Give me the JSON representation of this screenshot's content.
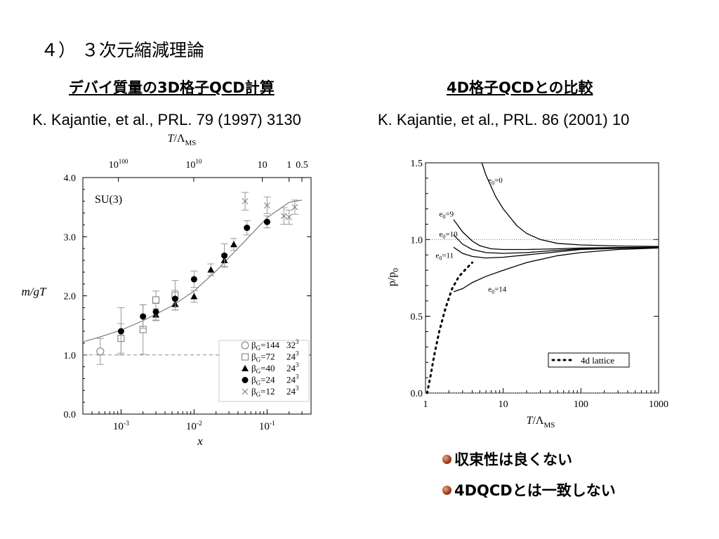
{
  "slide": {
    "title": "４） ３次元縮減理論",
    "left_heading": "デバイ質量の3D格子QCD計算",
    "right_heading": "4D格子QCDとの比較",
    "left_reference": "K. Kajantie, et al., PRL. 79 (1997) 3130",
    "right_reference": "K. Kajantie, et al., PRL.  86 (2001) 10",
    "bullets": [
      "収束性は良くない",
      "4DQCDとは一致しない"
    ],
    "bullet_color": "#a0341a"
  },
  "chart_data": [
    {
      "type": "scatter",
      "annotation": "SU(3)",
      "xlabel": "x",
      "ylabel": "m/gT",
      "x_scale": "log",
      "xlim": [
        0.0003,
        0.4
      ],
      "ylim": [
        0,
        4
      ],
      "xticks": [
        {
          "v": 0.001,
          "base": "10",
          "exp": "-3"
        },
        {
          "v": 0.01,
          "base": "10",
          "exp": "-2"
        },
        {
          "v": 0.1,
          "base": "10",
          "exp": "-1"
        }
      ],
      "yticks": [
        "0.0",
        "1.0",
        "2.0",
        "3.0",
        "4.0"
      ],
      "top_axis": {
        "label_italic": "T",
        "label_rest": "/Λ",
        "label_sub": "MS",
        "ticks": [
          {
            "x": 0.00092,
            "base": "10",
            "exp": "100"
          },
          {
            "x": 0.0099,
            "base": "10",
            "exp": "10"
          },
          {
            "x": 0.086,
            "text": "10"
          },
          {
            "x": 0.2,
            "text": "1"
          },
          {
            "x": 0.3,
            "text": "0.5"
          }
        ]
      },
      "reference_line_y": 1.0,
      "fit_curve": [
        [
          0.0003,
          1.22
        ],
        [
          0.0005,
          1.3
        ],
        [
          0.001,
          1.42
        ],
        [
          0.002,
          1.58
        ],
        [
          0.005,
          1.83
        ],
        [
          0.01,
          2.08
        ],
        [
          0.02,
          2.42
        ],
        [
          0.05,
          2.93
        ],
        [
          0.1,
          3.32
        ],
        [
          0.2,
          3.58
        ],
        [
          0.3,
          3.62
        ]
      ],
      "legend_position": "bottom-right",
      "series": [
        {
          "name": "144",
          "size": "32",
          "marker": "open-circle",
          "points": [
            [
              0.00052,
              1.06,
              0.22
            ]
          ]
        },
        {
          "name": "72",
          "size": "24",
          "marker": "open-square",
          "points": [
            [
              0.001,
              1.28,
              0.25
            ],
            [
              0.002,
              1.43,
              0.42
            ],
            [
              0.003,
              1.93,
              0.15
            ],
            [
              0.0055,
              2.01,
              0.25
            ]
          ]
        },
        {
          "name": "40",
          "size": "24",
          "marker": "filled-triangle",
          "points": [
            [
              0.003,
              1.68,
              0.1
            ],
            [
              0.0055,
              1.86,
              0.1
            ],
            [
              0.01,
              1.99,
              0.1
            ],
            [
              0.017,
              2.44,
              0.1
            ],
            [
              0.026,
              2.6,
              0.1
            ],
            [
              0.035,
              2.87,
              0.1
            ]
          ]
        },
        {
          "name": "24",
          "size": "24",
          "marker": "filled-circle",
          "points": [
            [
              0.001,
              1.4,
              0.4
            ],
            [
              0.002,
              1.65,
              0.2
            ],
            [
              0.003,
              1.73,
              0.14
            ],
            [
              0.0055,
              1.95,
              0.14
            ],
            [
              0.01,
              2.28,
              0.14
            ],
            [
              0.026,
              2.68,
              0.2
            ],
            [
              0.053,
              3.15,
              0.12
            ],
            [
              0.1,
              3.25,
              0.1
            ]
          ]
        },
        {
          "name": "12",
          "size": "24",
          "marker": "cross",
          "points": [
            [
              0.05,
              3.6,
              0.15
            ],
            [
              0.1,
              3.53,
              0.14
            ],
            [
              0.17,
              3.35,
              0.14
            ],
            [
              0.2,
              3.33,
              0.12
            ],
            [
              0.24,
              3.5,
              0.12
            ]
          ]
        }
      ]
    },
    {
      "type": "line",
      "xlabel_italic": "T",
      "xlabel_rest": "/Λ",
      "xlabel_sub": "MS",
      "ylabel_main": "p/p",
      "ylabel_sub": "0",
      "x_scale": "log",
      "xlim": [
        1,
        1000
      ],
      "ylim": [
        0,
        1.5
      ],
      "xticks": [
        "1",
        "10",
        "100",
        "1000"
      ],
      "yticks": [
        "0.0",
        "0.5",
        "1.0",
        "1.5"
      ],
      "reference_lines_y": [
        1.0,
        0.0
      ],
      "curve_labels": [
        {
          "text": "e",
          "sub": "0",
          "tail": "=0",
          "x": 6.4,
          "y": 1.37
        },
        {
          "text": "e",
          "sub": "0",
          "tail": "=9",
          "x": 1.5,
          "y": 1.15
        },
        {
          "text": "e",
          "sub": "0",
          "tail": "=10",
          "x": 1.5,
          "y": 1.02
        },
        {
          "text": "e",
          "sub": "0",
          "tail": "=11",
          "x": 1.35,
          "y": 0.88
        },
        {
          "text": "e",
          "sub": "0",
          "tail": "=14",
          "x": 6.4,
          "y": 0.66
        }
      ],
      "series": [
        {
          "name": "e0=0",
          "style": "solid",
          "points": [
            [
              5.3,
              1.5
            ],
            [
              6,
              1.42
            ],
            [
              8,
              1.28
            ],
            [
              10,
              1.2
            ],
            [
              15,
              1.09
            ],
            [
              20,
              1.04
            ],
            [
              30,
              1.0
            ],
            [
              50,
              0.975
            ],
            [
              100,
              0.965
            ],
            [
              300,
              0.958
            ],
            [
              1000,
              0.955
            ]
          ]
        },
        {
          "name": "e0=9",
          "style": "solid",
          "points": [
            [
              2.3,
              1.13
            ],
            [
              3,
              1.05
            ],
            [
              4,
              0.99
            ],
            [
              5,
              0.96
            ],
            [
              7,
              0.94
            ],
            [
              10,
              0.935
            ],
            [
              20,
              0.935
            ],
            [
              50,
              0.94
            ],
            [
              100,
              0.945
            ],
            [
              300,
              0.948
            ],
            [
              1000,
              0.95
            ]
          ]
        },
        {
          "name": "e0=10",
          "style": "solid",
          "points": [
            [
              2.3,
              1.03
            ],
            [
              3,
              0.97
            ],
            [
              4,
              0.935
            ],
            [
              6,
              0.915
            ],
            [
              10,
              0.91
            ],
            [
              20,
              0.915
            ],
            [
              50,
              0.93
            ],
            [
              100,
              0.94
            ],
            [
              300,
              0.946
            ],
            [
              1000,
              0.95
            ]
          ]
        },
        {
          "name": "e0=11",
          "style": "solid",
          "points": [
            [
              2.3,
              0.95
            ],
            [
              3,
              0.91
            ],
            [
              4,
              0.89
            ],
            [
              6,
              0.88
            ],
            [
              10,
              0.885
            ],
            [
              20,
              0.9
            ],
            [
              50,
              0.92
            ],
            [
              100,
              0.935
            ],
            [
              300,
              0.943
            ],
            [
              1000,
              0.948
            ]
          ]
        },
        {
          "name": "e0=14",
          "style": "solid",
          "points": [
            [
              2.3,
              0.66
            ],
            [
              3,
              0.68
            ],
            [
              4,
              0.72
            ],
            [
              6,
              0.76
            ],
            [
              10,
              0.8
            ],
            [
              20,
              0.85
            ],
            [
              50,
              0.895
            ],
            [
              100,
              0.915
            ],
            [
              300,
              0.935
            ],
            [
              1000,
              0.945
            ]
          ]
        },
        {
          "name": "4d lattice",
          "style": "dotted",
          "points": [
            [
              1.05,
              0.0
            ],
            [
              1.15,
              0.1
            ],
            [
              1.3,
              0.25
            ],
            [
              1.5,
              0.4
            ],
            [
              1.8,
              0.55
            ],
            [
              2.2,
              0.68
            ],
            [
              2.7,
              0.76
            ],
            [
              3.2,
              0.8
            ],
            [
              4,
              0.85
            ]
          ]
        }
      ],
      "legend": {
        "entry": "4d lattice",
        "position": "bottom-right"
      }
    }
  ]
}
